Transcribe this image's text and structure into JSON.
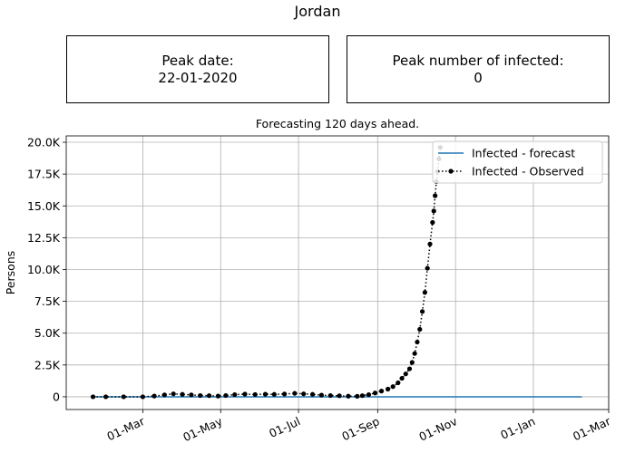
{
  "figure_title": "Jordan",
  "summary": {
    "peak_date_label": "Peak date:",
    "peak_date_value": "22-01-2020",
    "peak_infected_label": "Peak number of infected:",
    "peak_infected_value": "0"
  },
  "chart_data": {
    "type": "line",
    "title": "Forecasting 120 days ahead.",
    "xlabel": "",
    "ylabel": "Persons",
    "x_tick_labels": [
      "01-Mar",
      "01-May",
      "01-Jul",
      "01-Sep",
      "01-Nov",
      "01-Jan",
      "01-Mar"
    ],
    "x_ticks": [
      "2020-03-01",
      "2020-05-01",
      "2020-07-01",
      "2020-09-01",
      "2020-11-01",
      "2021-01-01",
      "2021-03-01"
    ],
    "xlim": [
      "2020-01-01",
      "2021-03-01"
    ],
    "y_ticks": [
      0,
      2500,
      5000,
      7500,
      10000,
      12500,
      15000,
      17500,
      20000
    ],
    "y_tick_labels": [
      "0",
      "2.5K",
      "5.0K",
      "7.5K",
      "10.0K",
      "12.5K",
      "15.0K",
      "17.5K",
      "20.0K"
    ],
    "ylim": [
      -1000,
      20500
    ],
    "grid": true,
    "legend_position": "top-right",
    "series": [
      {
        "name": "Infected - forecast",
        "color": "#1f77b4",
        "style": "solid",
        "points": [
          [
            "2020-01-22",
            0
          ],
          [
            "2021-02-08",
            0
          ]
        ]
      },
      {
        "name": "Infected - Observed",
        "color": "#000000",
        "style": "dotted-with-dots",
        "points": [
          [
            "2020-01-22",
            0
          ],
          [
            "2020-02-01",
            0
          ],
          [
            "2020-02-15",
            0
          ],
          [
            "2020-03-01",
            0
          ],
          [
            "2020-03-10",
            60
          ],
          [
            "2020-03-18",
            150
          ],
          [
            "2020-03-25",
            230
          ],
          [
            "2020-04-01",
            190
          ],
          [
            "2020-04-08",
            150
          ],
          [
            "2020-04-15",
            100
          ],
          [
            "2020-04-22",
            90
          ],
          [
            "2020-04-29",
            60
          ],
          [
            "2020-05-05",
            100
          ],
          [
            "2020-05-12",
            170
          ],
          [
            "2020-05-20",
            210
          ],
          [
            "2020-05-28",
            180
          ],
          [
            "2020-06-05",
            200
          ],
          [
            "2020-06-12",
            190
          ],
          [
            "2020-06-20",
            220
          ],
          [
            "2020-06-28",
            270
          ],
          [
            "2020-07-05",
            230
          ],
          [
            "2020-07-12",
            190
          ],
          [
            "2020-07-19",
            130
          ],
          [
            "2020-07-26",
            100
          ],
          [
            "2020-08-02",
            80
          ],
          [
            "2020-08-09",
            50
          ],
          [
            "2020-08-16",
            40
          ],
          [
            "2020-08-20",
            90
          ],
          [
            "2020-08-25",
            170
          ],
          [
            "2020-08-30",
            300
          ],
          [
            "2020-09-04",
            450
          ],
          [
            "2020-09-09",
            600
          ],
          [
            "2020-09-13",
            800
          ],
          [
            "2020-09-17",
            1100
          ],
          [
            "2020-09-20",
            1450
          ],
          [
            "2020-09-23",
            1800
          ],
          [
            "2020-09-26",
            2200
          ],
          [
            "2020-09-28",
            2700
          ],
          [
            "2020-09-30",
            3400
          ],
          [
            "2020-10-02",
            4300
          ],
          [
            "2020-10-04",
            5300
          ],
          [
            "2020-10-06",
            6700
          ],
          [
            "2020-10-08",
            8200
          ],
          [
            "2020-10-10",
            10100
          ],
          [
            "2020-10-12",
            12000
          ],
          [
            "2020-10-14",
            13700
          ],
          [
            "2020-10-15",
            14600
          ],
          [
            "2020-10-16",
            15800
          ],
          [
            "2020-10-17",
            16900
          ],
          [
            "2020-10-18",
            17700
          ],
          [
            "2020-10-19",
            18700
          ],
          [
            "2020-10-20",
            19600
          ]
        ]
      }
    ]
  }
}
